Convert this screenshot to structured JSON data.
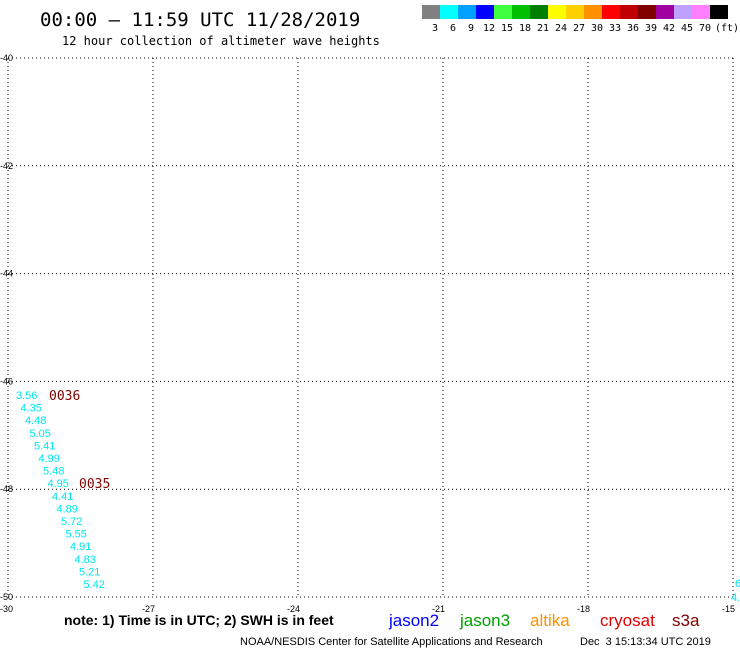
{
  "header": {
    "title": "00:00 — 11:59 UTC 11/28/2019",
    "subtitle": "12 hour collection of altimeter wave heights"
  },
  "legend": {
    "unit": "(ft)",
    "items": [
      {
        "label": "3",
        "color": "#808080"
      },
      {
        "label": "6",
        "color": "#00ffff"
      },
      {
        "label": "9",
        "color": "#00a0ff"
      },
      {
        "label": "12",
        "color": "#0000ff"
      },
      {
        "label": "15",
        "color": "#40ff40"
      },
      {
        "label": "18",
        "color": "#00c000"
      },
      {
        "label": "21",
        "color": "#008000"
      },
      {
        "label": "24",
        "color": "#ffff00"
      },
      {
        "label": "27",
        "color": "#ffd000"
      },
      {
        "label": "30",
        "color": "#ff9000"
      },
      {
        "label": "33",
        "color": "#ff0000"
      },
      {
        "label": "36",
        "color": "#c00000"
      },
      {
        "label": "39",
        "color": "#800000"
      },
      {
        "label": "42",
        "color": "#a000a0"
      },
      {
        "label": "45",
        "color": "#c0a0ff"
      },
      {
        "label": "70",
        "color": "#ff80ff"
      },
      {
        "label": "",
        "color": "#000000"
      }
    ]
  },
  "map": {
    "lat_range": [
      -50,
      -40
    ],
    "lon_range": [
      -30,
      -15
    ],
    "lat_ticks": [
      "-40",
      "-42",
      "-44",
      "-46",
      "-48",
      "-50"
    ],
    "lon_ticks": [
      "-30",
      "-27",
      "-24",
      "-21",
      "-18",
      "-15"
    ],
    "grid": "dotted"
  },
  "observations": {
    "color": "#00e5ee",
    "values": [
      "3.56",
      "4.35",
      "4.48",
      "5.05",
      "5.41",
      "4.99",
      "5.48",
      "4.95",
      "4.41",
      "4.89",
      "5.72",
      "5.55",
      "4.91",
      "4.83",
      "5.21",
      "5.42"
    ],
    "edge_values": [
      "6",
      "4."
    ]
  },
  "time_tags": {
    "color": "#800000",
    "values": [
      "0036",
      "0035"
    ]
  },
  "footer": {
    "note": "note: 1) Time is in UTC; 2) SWH is in feet",
    "satellites": [
      {
        "label": "jason2",
        "color": "#0000ff"
      },
      {
        "label": "jason3",
        "color": "#00a000"
      },
      {
        "label": "altika",
        "color": "#ff9000"
      },
      {
        "label": "cryosat",
        "color": "#e00000"
      },
      {
        "label": "s3a",
        "color": "#800000"
      }
    ],
    "credit": "NOAA/NESDIS Center for Satellite Applications and Research",
    "timestamp": "Dec  3 15:13:34 UTC 2019"
  }
}
